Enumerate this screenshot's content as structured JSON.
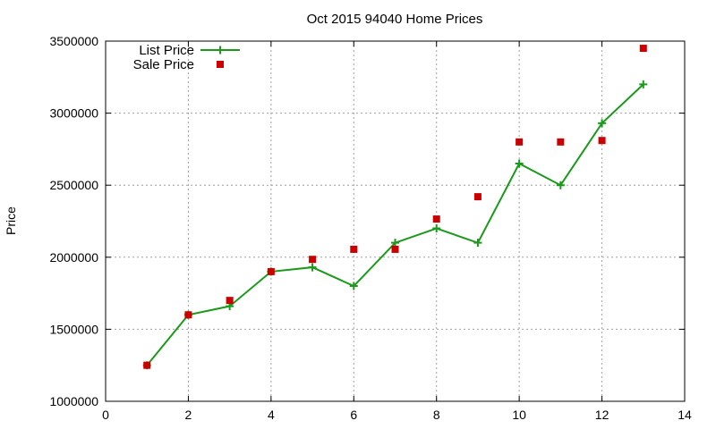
{
  "chart_data": {
    "type": "line",
    "title": "Oct 2015 94040 Home Prices",
    "xlabel": "",
    "ylabel": "Price",
    "xlim": [
      0,
      14
    ],
    "ylim": [
      1000000,
      3500000
    ],
    "xticks": [
      0,
      2,
      4,
      6,
      8,
      10,
      12,
      14
    ],
    "yticks": [
      1000000,
      1500000,
      2000000,
      2500000,
      3000000,
      3500000
    ],
    "xtick_labels": [
      "0",
      "2",
      "4",
      "6",
      "8",
      "10",
      "12",
      "14"
    ],
    "ytick_labels": [
      "1000000",
      "1500000",
      "2000000",
      "2500000",
      "3000000",
      "3500000"
    ],
    "grid": true,
    "legend_position": "top-left",
    "x": [
      1,
      2,
      3,
      4,
      5,
      6,
      7,
      8,
      9,
      10,
      11,
      12,
      13
    ],
    "series": [
      {
        "name": "List Price",
        "style": "linespoints",
        "marker": "plus",
        "color": "#1a9a1a",
        "values": [
          1250000,
          1600000,
          1660000,
          1900000,
          1930000,
          1800000,
          2100000,
          2200000,
          2100000,
          2650000,
          2500000,
          2930000,
          3200000
        ]
      },
      {
        "name": "Sale Price",
        "style": "points",
        "marker": "square",
        "color": "#cc0000",
        "values": [
          1250000,
          1600000,
          1700000,
          1900000,
          1985000,
          2055000,
          2055000,
          2265000,
          2420000,
          2800000,
          2800000,
          2810000,
          3450000
        ]
      }
    ]
  }
}
